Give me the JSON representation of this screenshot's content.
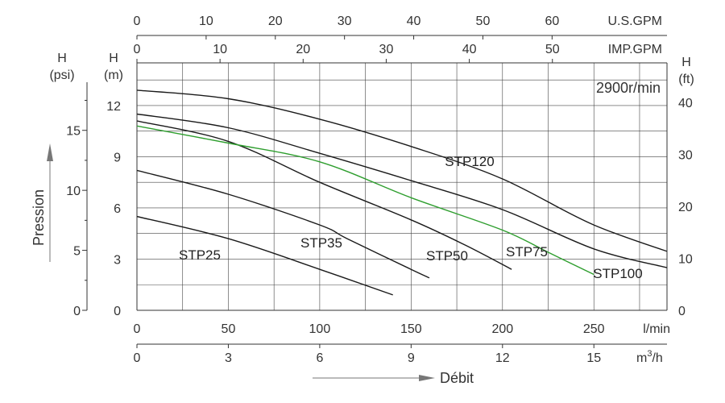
{
  "chart_data": {
    "type": "line",
    "speed_label": "2900r/min",
    "flow_axis_label": "Débit",
    "pressure_axis_label": "Pression",
    "grid": true,
    "axes": {
      "top_usgpm": {
        "unit": "U.S.GPM",
        "ticks": [
          0,
          10,
          20,
          30,
          40,
          50,
          60
        ]
      },
      "top_impgpm": {
        "unit": "IMP.GPM",
        "ticks": [
          0,
          10,
          20,
          30,
          40,
          50
        ]
      },
      "bottom_lmin": {
        "unit": "l/min",
        "ticks": [
          0,
          50,
          100,
          150,
          200,
          250
        ],
        "range": [
          0,
          290
        ]
      },
      "bottom_m3h": {
        "unit": "m",
        "unit_suffix": "/h",
        "unit_sup": "3",
        "ticks": [
          0,
          3,
          6,
          9,
          12,
          15
        ]
      },
      "left_m": {
        "unit_top": "H",
        "unit_bottom": "(m)",
        "ticks": [
          0,
          3,
          6,
          9,
          12
        ],
        "range": [
          0,
          14.5
        ]
      },
      "left_psi": {
        "unit_top": "H",
        "unit_bottom": "(psi)",
        "ticks": [
          0,
          5,
          10,
          15
        ]
      },
      "right_ft": {
        "unit_top": "H",
        "unit_bottom": "(ft)",
        "ticks": [
          0,
          10,
          20,
          30,
          40
        ]
      }
    },
    "series": [
      {
        "name": "STP25",
        "color": "#1a1a1a",
        "x": [
          0,
          50,
          100,
          140
        ],
        "y": [
          5.5,
          4.2,
          2.4,
          0.9
        ]
      },
      {
        "name": "STP35",
        "color": "#1a1a1a",
        "x": [
          0,
          50,
          100,
          115,
          150,
          160
        ],
        "y": [
          8.2,
          6.8,
          5.0,
          4.2,
          2.4,
          1.9
        ]
      },
      {
        "name": "STP50",
        "color": "#1a1a1a",
        "x": [
          0,
          50,
          100,
          150,
          180,
          205
        ],
        "y": [
          11.1,
          9.9,
          7.5,
          5.3,
          3.8,
          2.4
        ]
      },
      {
        "name": "STP75",
        "color": "#2e9e2e",
        "x": [
          0,
          50,
          100,
          150,
          200,
          225,
          250
        ],
        "y": [
          10.8,
          9.8,
          8.7,
          6.6,
          4.7,
          3.4,
          2.1
        ]
      },
      {
        "name": "STP100",
        "color": "#1a1a1a",
        "x": [
          0,
          50,
          100,
          150,
          200,
          250,
          290
        ],
        "y": [
          11.5,
          10.7,
          9.2,
          7.6,
          5.9,
          3.6,
          2.5
        ]
      },
      {
        "name": "STP120",
        "color": "#1a1a1a",
        "x": [
          0,
          50,
          100,
          150,
          200,
          250,
          300
        ],
        "y": [
          12.9,
          12.4,
          11.2,
          9.6,
          7.7,
          5.0,
          3.1
        ]
      }
    ]
  }
}
